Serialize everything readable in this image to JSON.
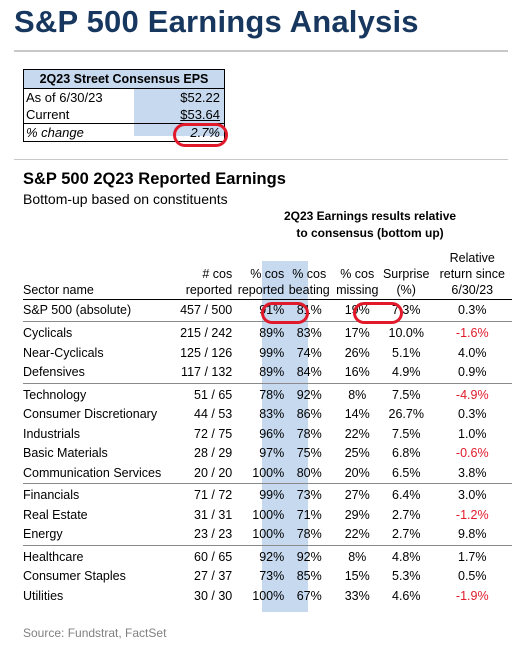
{
  "title": "S&P 500 Earnings Analysis",
  "eps_box": {
    "header": "2Q23 Street Consensus EPS",
    "rows": [
      {
        "label": "As of 6/30/23",
        "value": "$52.22"
      },
      {
        "label": "Current",
        "value": "$53.64"
      },
      {
        "label": "% change",
        "value": "2.7%"
      }
    ]
  },
  "section": {
    "title": "S&P 500 2Q23 Reported Earnings",
    "subtitle": "Bottom-up based on constituents",
    "relative_heading_1": "2Q23 Earnings results relative",
    "relative_heading_2": "to consensus (bottom up)"
  },
  "table": {
    "headers": {
      "sector": "Sector name",
      "reported_1": "# cos",
      "reported_2": "reported",
      "pct_reported_1": "% cos",
      "pct_reported_2": "reported",
      "pct_beating_1": "% cos",
      "pct_beating_2": "beating",
      "pct_missing_1": "% cos",
      "pct_missing_2": "missing",
      "surprise_1": "Surprise",
      "surprise_2": "(%)",
      "relret_1": "Relative",
      "relret_2": "return since",
      "relret_3": "6/30/23"
    },
    "absolute": {
      "sector": "S&P 500 (absolute)",
      "reported": "457 / 500",
      "pct_reported": "91%",
      "pct_beating": "81%",
      "pct_missing": "19%",
      "surprise": "7.3%",
      "relret": "0.3%"
    },
    "rows": [
      {
        "sector": "Cyclicals",
        "reported": "215 / 242",
        "pct_reported": "89%",
        "pct_beating": "83%",
        "pct_missing": "17%",
        "surprise": "10.0%",
        "relret": "-1.6%"
      },
      {
        "sector": "Near-Cyclicals",
        "reported": "125 / 126",
        "pct_reported": "99%",
        "pct_beating": "74%",
        "pct_missing": "26%",
        "surprise": "5.1%",
        "relret": "4.0%"
      },
      {
        "sector": "Defensives",
        "reported": "117 / 132",
        "pct_reported": "89%",
        "pct_beating": "84%",
        "pct_missing": "16%",
        "surprise": "4.9%",
        "relret": "0.9%"
      },
      {
        "sector": "Technology",
        "reported": "51 / 65",
        "pct_reported": "78%",
        "pct_beating": "92%",
        "pct_missing": "8%",
        "surprise": "7.5%",
        "relret": "-4.9%"
      },
      {
        "sector": "Consumer Discretionary",
        "reported": "44 / 53",
        "pct_reported": "83%",
        "pct_beating": "86%",
        "pct_missing": "14%",
        "surprise": "26.7%",
        "relret": "0.3%"
      },
      {
        "sector": "Industrials",
        "reported": "72 / 75",
        "pct_reported": "96%",
        "pct_beating": "78%",
        "pct_missing": "22%",
        "surprise": "7.5%",
        "relret": "1.0%"
      },
      {
        "sector": "Basic Materials",
        "reported": "28 / 29",
        "pct_reported": "97%",
        "pct_beating": "75%",
        "pct_missing": "25%",
        "surprise": "6.8%",
        "relret": "-0.6%"
      },
      {
        "sector": "Communication Services",
        "reported": "20 / 20",
        "pct_reported": "100%",
        "pct_beating": "80%",
        "pct_missing": "20%",
        "surprise": "6.5%",
        "relret": "3.8%"
      },
      {
        "sector": "Financials",
        "reported": "71 / 72",
        "pct_reported": "99%",
        "pct_beating": "73%",
        "pct_missing": "27%",
        "surprise": "6.4%",
        "relret": "3.0%"
      },
      {
        "sector": "Real Estate",
        "reported": "31 / 31",
        "pct_reported": "100%",
        "pct_beating": "71%",
        "pct_missing": "29%",
        "surprise": "2.7%",
        "relret": "-1.2%"
      },
      {
        "sector": "Energy",
        "reported": "23 / 23",
        "pct_reported": "100%",
        "pct_beating": "78%",
        "pct_missing": "22%",
        "surprise": "2.7%",
        "relret": "9.8%"
      },
      {
        "sector": "Healthcare",
        "reported": "60 / 65",
        "pct_reported": "92%",
        "pct_beating": "92%",
        "pct_missing": "8%",
        "surprise": "4.8%",
        "relret": "1.7%"
      },
      {
        "sector": "Consumer Staples",
        "reported": "27 / 37",
        "pct_reported": "73%",
        "pct_beating": "85%",
        "pct_missing": "15%",
        "surprise": "5.3%",
        "relret": "0.5%"
      },
      {
        "sector": "Utilities",
        "reported": "30 / 30",
        "pct_reported": "100%",
        "pct_beating": "67%",
        "pct_missing": "33%",
        "surprise": "4.6%",
        "relret": "-1.9%"
      }
    ]
  },
  "source": "Source: Fundstrat, FactSet",
  "colors": {
    "title": "#17375e",
    "highlight": "#c6d9ef",
    "negative": "#e01a2a",
    "circle": "#e01a2a"
  }
}
